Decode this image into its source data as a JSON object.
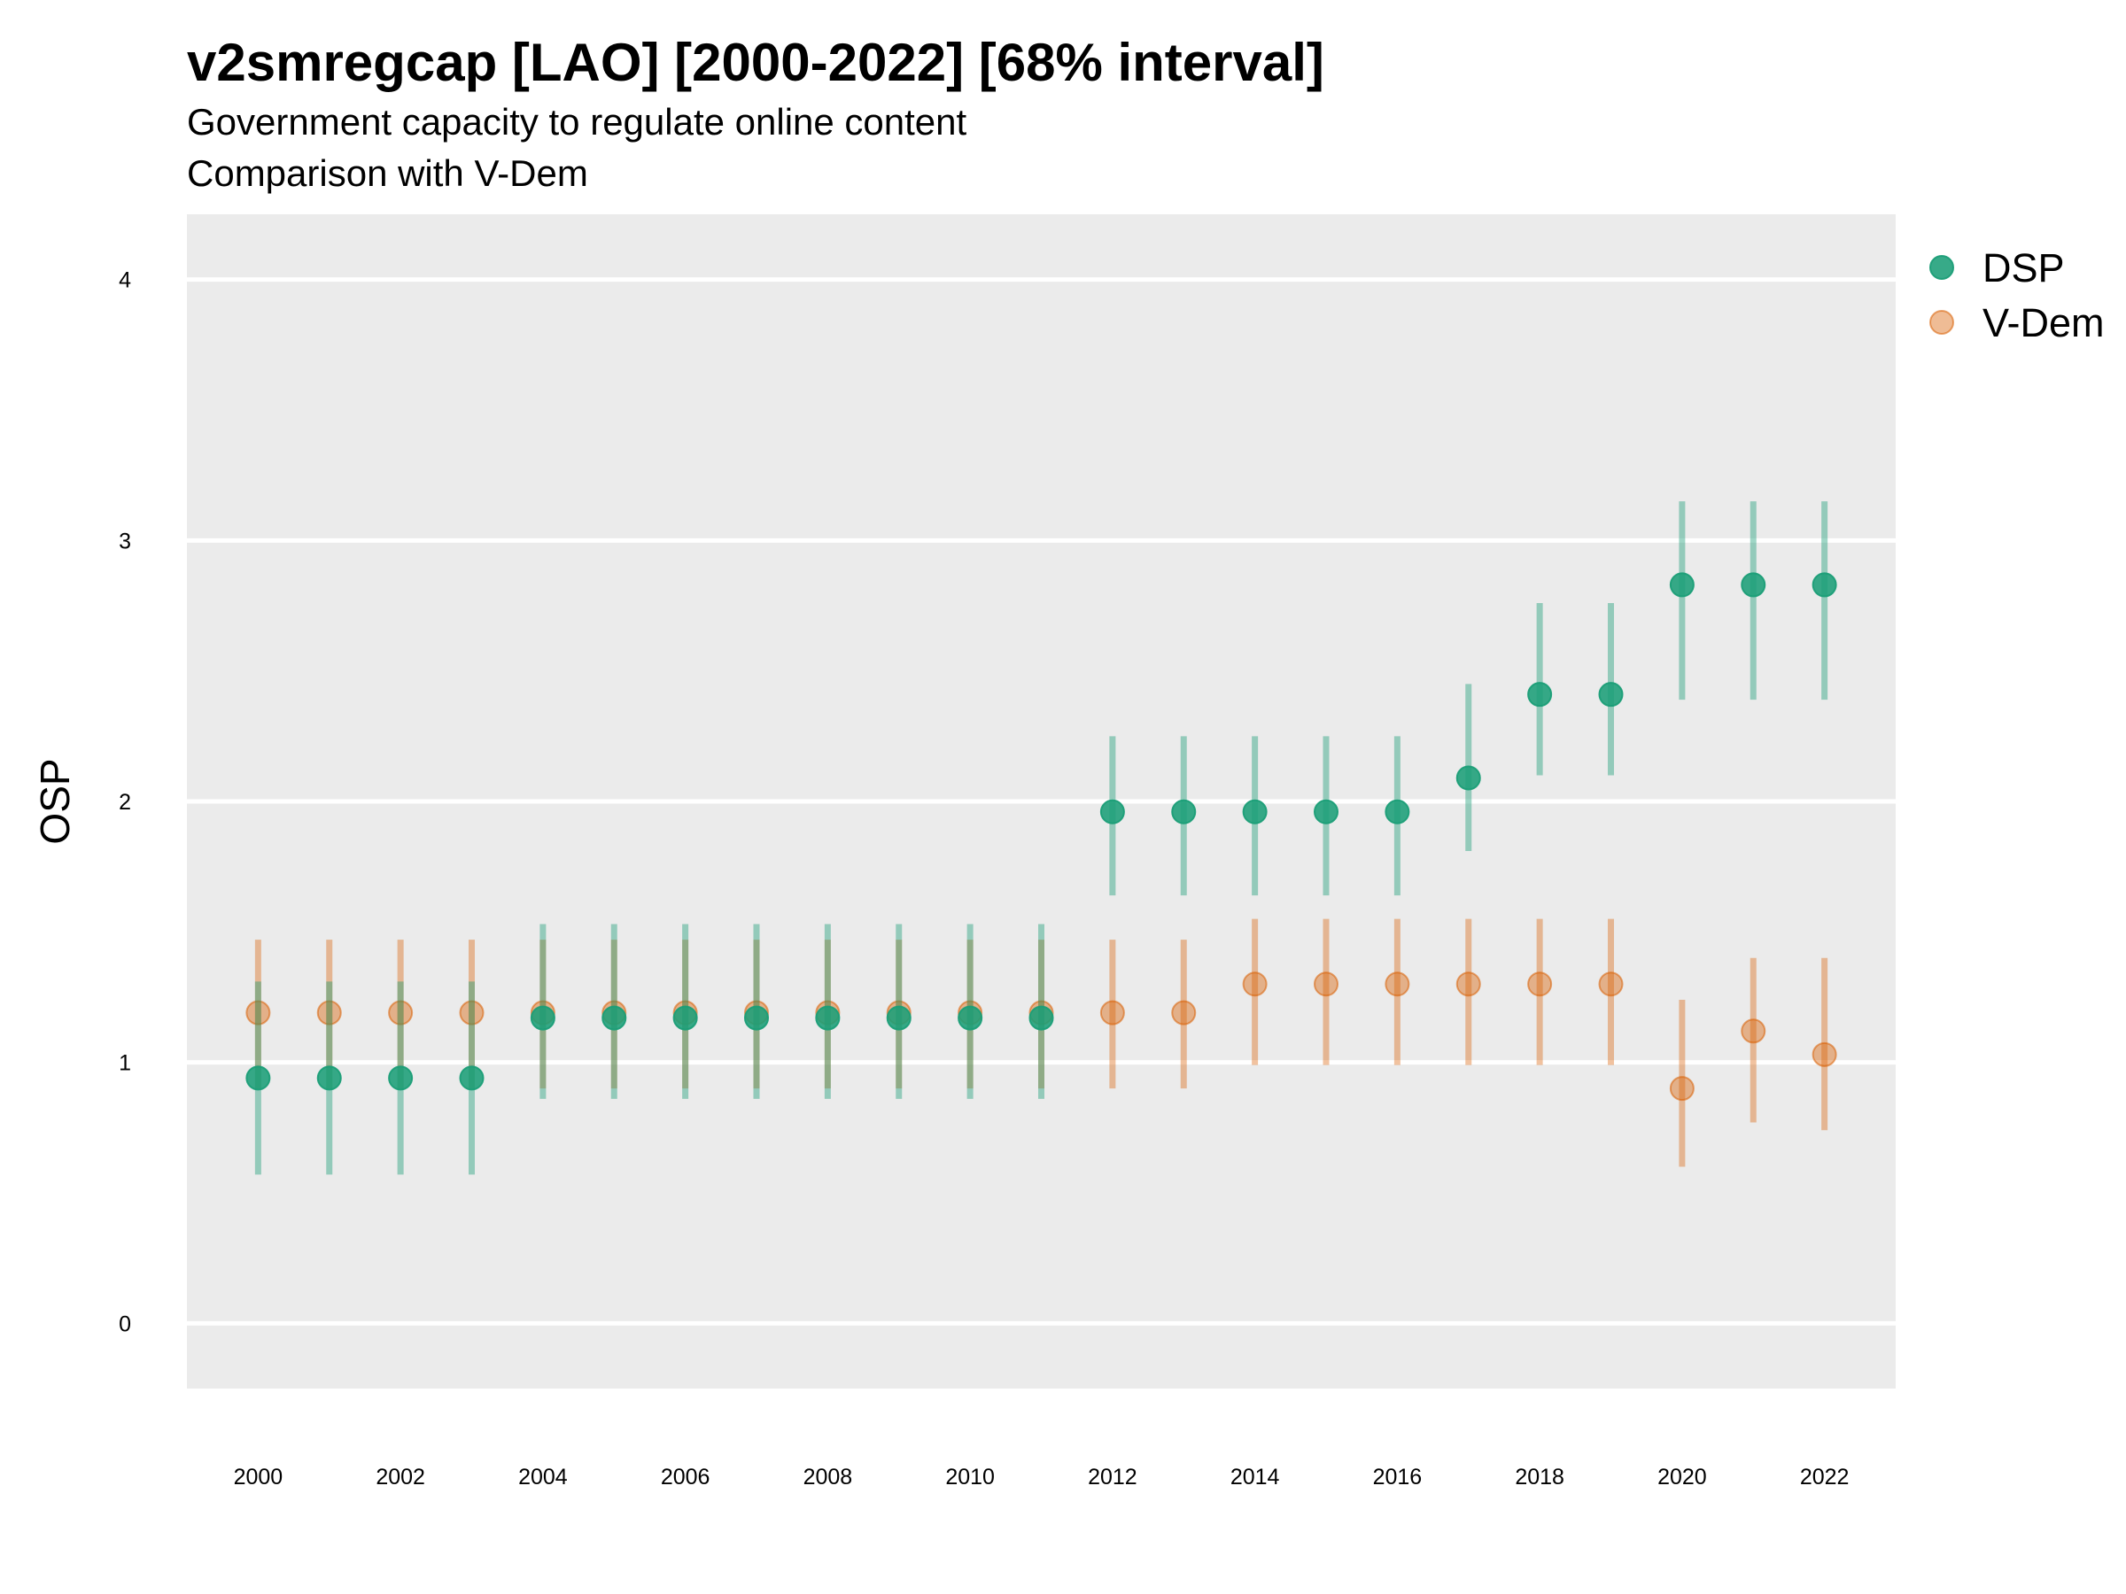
{
  "chart_data": {
    "type": "scatter",
    "title": "v2smregcap [LAO] [2000-2022] [68% interval]",
    "subtitle_lines": [
      "Government capacity to regulate online content",
      "Comparison with V-Dem"
    ],
    "xlabel": "",
    "ylabel": "OSP",
    "xlim": [
      1999,
      2023
    ],
    "ylim": [
      -0.25,
      4.25
    ],
    "x_ticks": [
      2000,
      2002,
      2004,
      2006,
      2008,
      2010,
      2012,
      2014,
      2016,
      2018,
      2020,
      2022
    ],
    "y_ticks": [
      0,
      1,
      2,
      3,
      4
    ],
    "grid": true,
    "legend_position": "top-right",
    "x": [
      2000,
      2001,
      2002,
      2003,
      2004,
      2005,
      2006,
      2007,
      2008,
      2009,
      2010,
      2011,
      2012,
      2013,
      2014,
      2015,
      2016,
      2017,
      2018,
      2019,
      2020,
      2021,
      2022
    ],
    "series": [
      {
        "name": "DSP",
        "color": "#1b9e77",
        "values": [
          0.94,
          0.94,
          0.94,
          0.94,
          1.17,
          1.17,
          1.17,
          1.17,
          1.17,
          1.17,
          1.17,
          1.17,
          1.96,
          1.96,
          1.96,
          1.96,
          1.96,
          2.09,
          2.41,
          2.41,
          2.83,
          2.83,
          2.83
        ],
        "lower": [
          0.57,
          0.57,
          0.57,
          0.57,
          0.86,
          0.86,
          0.86,
          0.86,
          0.86,
          0.86,
          0.86,
          0.86,
          1.64,
          1.64,
          1.64,
          1.64,
          1.64,
          1.81,
          2.1,
          2.1,
          2.39,
          2.39,
          2.39
        ],
        "upper": [
          1.31,
          1.31,
          1.31,
          1.31,
          1.53,
          1.53,
          1.53,
          1.53,
          1.53,
          1.53,
          1.53,
          1.53,
          2.25,
          2.25,
          2.25,
          2.25,
          2.25,
          2.45,
          2.76,
          2.76,
          3.15,
          3.15,
          3.15
        ]
      },
      {
        "name": "V-Dem",
        "color": "#d95f02",
        "values": [
          1.19,
          1.19,
          1.19,
          1.19,
          1.19,
          1.19,
          1.19,
          1.19,
          1.19,
          1.19,
          1.19,
          1.19,
          1.19,
          1.19,
          1.3,
          1.3,
          1.3,
          1.3,
          1.3,
          1.3,
          0.9,
          1.12,
          1.03
        ],
        "lower": [
          0.9,
          0.9,
          0.9,
          0.9,
          0.9,
          0.9,
          0.9,
          0.9,
          0.9,
          0.9,
          0.9,
          0.9,
          0.9,
          0.9,
          0.99,
          0.99,
          0.99,
          0.99,
          0.99,
          0.99,
          0.6,
          0.77,
          0.74
        ],
        "upper": [
          1.47,
          1.47,
          1.47,
          1.47,
          1.47,
          1.47,
          1.47,
          1.47,
          1.47,
          1.47,
          1.47,
          1.47,
          1.47,
          1.47,
          1.55,
          1.55,
          1.55,
          1.55,
          1.55,
          1.55,
          1.24,
          1.4,
          1.4
        ]
      }
    ]
  }
}
